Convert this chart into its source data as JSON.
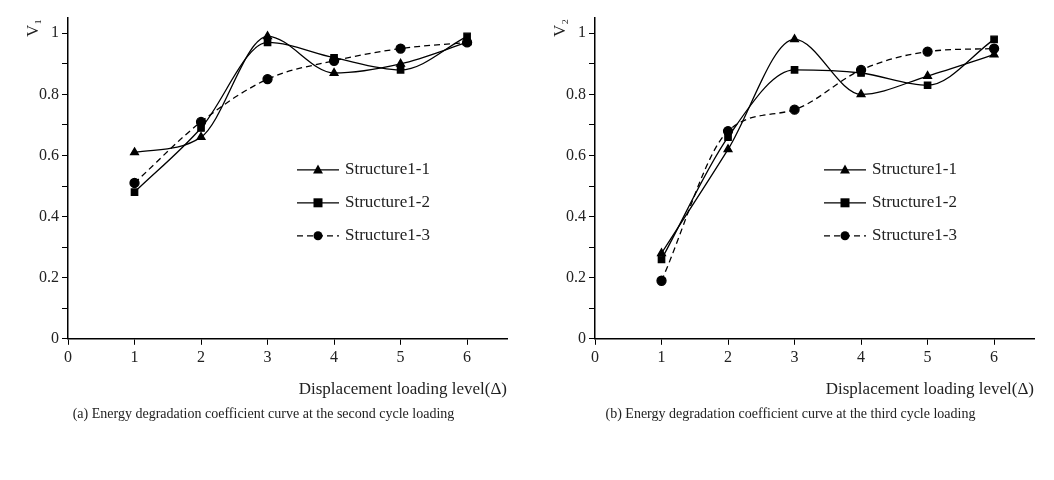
{
  "chart_data": [
    {
      "type": "line",
      "title": "(a) Energy degradation coefficient curve at the second cycle loading",
      "xlabel": "Displacement loading level(Δ)",
      "ylabel": "V₁",
      "x": [
        1,
        2,
        3,
        4,
        5,
        6
      ],
      "series": [
        {
          "name": "Structure1-1",
          "color": "#000000",
          "marker": "triangle",
          "line_style": "solid",
          "values": [
            0.61,
            0.66,
            0.99,
            0.87,
            0.9,
            0.97
          ]
        },
        {
          "name": "Structure1-2",
          "color": "#000000",
          "marker": "square",
          "line_style": "solid",
          "values": [
            0.48,
            0.69,
            0.97,
            0.92,
            0.88,
            0.99
          ]
        },
        {
          "name": "Structure1-3",
          "color": "#000000",
          "marker": "circle",
          "line_style": "dashed",
          "values": [
            0.51,
            0.71,
            0.85,
            0.91,
            0.95,
            0.97
          ]
        }
      ],
      "xlim": [
        0,
        6.6
      ],
      "xticks": [
        0,
        1,
        2,
        3,
        4,
        5,
        6
      ],
      "ylim": [
        0,
        1.05
      ],
      "yticks": [
        0,
        {
          "value": 0.1,
          "label": null
        },
        0.2,
        {
          "value": 0.3,
          "label": null
        },
        0.4,
        {
          "value": 0.5,
          "label": null
        },
        0.6,
        {
          "value": 0.7,
          "label": null
        },
        0.8,
        {
          "value": 0.9,
          "label": null
        },
        1
      ],
      "grid": false,
      "legend": "right"
    },
    {
      "type": "line",
      "title": "(b) Energy degradation coefficient curve at the third cycle loading",
      "xlabel": "Displacement loading level(Δ)",
      "ylabel": "V₂",
      "x": [
        1,
        2,
        3,
        4,
        5,
        6
      ],
      "series": [
        {
          "name": "Structure1-1",
          "color": "#000000",
          "marker": "triangle",
          "line_style": "solid",
          "values": [
            0.28,
            0.62,
            0.98,
            0.8,
            0.86,
            0.93
          ]
        },
        {
          "name": "Structure1-2",
          "color": "#000000",
          "marker": "square",
          "line_style": "solid",
          "values": [
            0.26,
            0.66,
            0.88,
            0.87,
            0.83,
            0.98
          ]
        },
        {
          "name": "Structure1-3",
          "color": "#000000",
          "marker": "circle",
          "line_style": "dashed",
          "values": [
            0.19,
            0.68,
            0.75,
            0.88,
            0.94,
            0.95
          ]
        }
      ],
      "xlim": [
        0,
        6.6
      ],
      "xticks": [
        0,
        1,
        2,
        3,
        4,
        5,
        6
      ],
      "ylim": [
        0,
        1.05
      ],
      "yticks": [
        0,
        {
          "value": 0.1,
          "label": null
        },
        0.2,
        {
          "value": 0.3,
          "label": null
        },
        0.4,
        {
          "value": 0.5,
          "label": null
        },
        0.6,
        {
          "value": 0.7,
          "label": null
        },
        0.8,
        {
          "value": 0.9,
          "label": null
        },
        1
      ],
      "grid": false,
      "legend": "right"
    }
  ]
}
